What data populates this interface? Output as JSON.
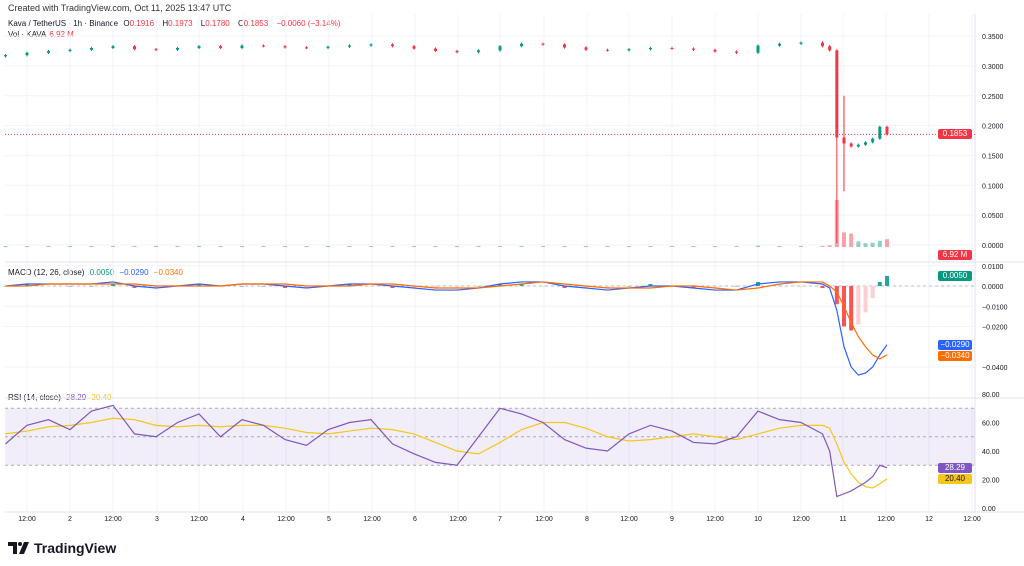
{
  "credit": "Created with TradingView.com, Oct 11, 2025 13:47 UTC",
  "brand": "TradingView",
  "legend": {
    "symbol": "Kava / TetherUS · 1h · Binance",
    "o_label": "O",
    "o": "0.1916",
    "h_label": "H",
    "h": "0.1973",
    "l_label": "L",
    "l": "0.1780",
    "c_label": "C",
    "c": "0.1853",
    "change": "−0.0060 (−3.14%)",
    "vol_label": "Vol · KAVA",
    "vol": "6.92 M",
    "macd_label": "MACD (12, 26, close)",
    "macd_hist": "0.0050",
    "macd": "−0.0290",
    "macd_signal": "−0.0340",
    "rsi_label": "RSI (14, close)",
    "rsi": "28.29",
    "rsi_ma": "20.40"
  },
  "colors": {
    "up": "#089981",
    "down": "#f23645",
    "macd": "#2962ff",
    "signal": "#ff6d00",
    "rsi": "#7e57c2",
    "rsi_ma": "#f7c51e"
  },
  "tags": {
    "price": "0.1853",
    "vol": "6.92 M",
    "hist": "0.0050",
    "macd": "−0.0290",
    "signal": "−0.0340",
    "rsi": "28.29",
    "rsi_ma": "20.40"
  },
  "chart_data": [
    {
      "type": "candlestick",
      "yaxis_ticks": [
        "0.3500",
        "0.3000",
        "0.2500",
        "0.2000",
        "0.1500",
        "0.1000",
        "0.0500",
        "0.0000"
      ],
      "x_ticks": [
        "12:00",
        "2",
        "12:00",
        "3",
        "12:00",
        "4",
        "12:00",
        "5",
        "12:00",
        "6",
        "12:00",
        "7",
        "12:00",
        "8",
        "12:00",
        "9",
        "12:00",
        "10",
        "12:00",
        "11",
        "12:00",
        "12",
        "12:00"
      ],
      "times": [
        "Oct 1 06:00",
        "Oct 1 12:00",
        "Oct 1 18:00",
        "Oct 2 00:00",
        "Oct 2 06:00",
        "Oct 2 12:00",
        "Oct 2 18:00",
        "Oct 3 00:00",
        "Oct 3 06:00",
        "Oct 3 12:00",
        "Oct 3 18:00",
        "Oct 4 00:00",
        "Oct 4 06:00",
        "Oct 4 12:00",
        "Oct 4 18:00",
        "Oct 5 00:00",
        "Oct 5 06:00",
        "Oct 5 12:00",
        "Oct 5 18:00",
        "Oct 6 00:00",
        "Oct 6 06:00",
        "Oct 6 12:00",
        "Oct 6 18:00",
        "Oct 7 00:00",
        "Oct 7 06:00",
        "Oct 7 12:00",
        "Oct 7 18:00",
        "Oct 8 00:00",
        "Oct 8 06:00",
        "Oct 8 12:00",
        "Oct 8 18:00",
        "Oct 9 00:00",
        "Oct 9 06:00",
        "Oct 9 12:00",
        "Oct 9 18:00",
        "Oct 10 00:00",
        "Oct 10 06:00",
        "Oct 10 12:00",
        "Oct 10 18:00",
        "Oct 10 20:00",
        "Oct 10 22:00",
        "Oct 11 00:00",
        "Oct 11 02:00",
        "Oct 11 04:00",
        "Oct 11 06:00",
        "Oct 11 08:00",
        "Oct 11 10:00",
        "Oct 11 12:00"
      ],
      "close": [
        0.318,
        0.322,
        0.325,
        0.327,
        0.33,
        0.333,
        0.328,
        0.327,
        0.33,
        0.333,
        0.33,
        0.334,
        0.333,
        0.331,
        0.33,
        0.332,
        0.334,
        0.336,
        0.333,
        0.329,
        0.325,
        0.323,
        0.326,
        0.333,
        0.337,
        0.336,
        0.331,
        0.327,
        0.326,
        0.328,
        0.33,
        0.329,
        0.327,
        0.324,
        0.322,
        0.334,
        0.337,
        0.339,
        0.333,
        0.326,
        0.18,
        0.17,
        0.165,
        0.168,
        0.172,
        0.178,
        0.198,
        0.1853
      ],
      "low_extremes": {
        "Oct 10 22:00": 0.003,
        "Oct 11 00:00": 0.09
      },
      "high_extremes": {
        "Oct 11 00:00": 0.25
      },
      "volume_m": [
        0.4,
        0.3,
        0.5,
        0.6,
        0.4,
        0.5,
        0.7,
        0.4,
        0.3,
        0.5,
        0.4,
        0.6,
        0.5,
        0.4,
        0.3,
        0.4,
        0.6,
        0.5,
        0.4,
        0.7,
        0.6,
        0.5,
        0.4,
        0.8,
        0.6,
        0.5,
        0.4,
        0.5,
        0.4,
        0.3,
        0.4,
        0.5,
        0.4,
        0.6,
        0.5,
        1.2,
        0.8,
        0.7,
        0.9,
        1.5,
        42,
        13,
        12,
        5,
        3.5,
        3.8,
        5.5,
        6.92
      ],
      "current_price": 0.1853
    },
    {
      "type": "line",
      "name": "MACD (12, 26, close)",
      "yaxis_ticks": [
        "0.0100",
        "0.0000",
        "−0.0100",
        "−0.0200",
        "−0.0400"
      ],
      "macd": [
        0.0,
        0.001,
        0.001,
        0.001,
        0.001,
        0.002,
        0.0,
        -0.001,
        0.0,
        0.001,
        0.0,
        0.001,
        0.001,
        0.0,
        -0.001,
        0.0,
        0.001,
        0.001,
        0.0,
        -0.001,
        -0.002,
        -0.002,
        -0.001,
        0.001,
        0.002,
        0.002,
        0.0,
        -0.001,
        -0.002,
        -0.001,
        0.0,
        0.0,
        -0.001,
        -0.002,
        -0.002,
        0.001,
        0.002,
        0.002,
        0.001,
        -0.001,
        -0.012,
        -0.03,
        -0.04,
        -0.044,
        -0.043,
        -0.04,
        -0.034,
        -0.029
      ],
      "signal": [
        0.0,
        0.0,
        0.001,
        0.001,
        0.001,
        0.001,
        0.001,
        0.0,
        0.0,
        0.0,
        0.0,
        0.001,
        0.001,
        0.001,
        0.0,
        0.0,
        0.0,
        0.001,
        0.001,
        0.0,
        -0.001,
        -0.001,
        -0.001,
        0.0,
        0.001,
        0.002,
        0.001,
        0.0,
        -0.001,
        -0.001,
        -0.001,
        0.0,
        0.0,
        -0.001,
        -0.002,
        -0.001,
        0.001,
        0.002,
        0.002,
        0.0,
        -0.003,
        -0.01,
        -0.018,
        -0.025,
        -0.03,
        -0.034,
        -0.036,
        -0.034
      ]
    },
    {
      "type": "line",
      "name": "RSI (14, close)",
      "yaxis_ticks": [
        "80.00",
        "60.00",
        "40.00",
        "20.00",
        "0.00"
      ],
      "bands": [
        70,
        50,
        30
      ],
      "rsi": [
        45,
        58,
        62,
        55,
        68,
        72,
        52,
        50,
        60,
        66,
        50,
        62,
        58,
        48,
        44,
        55,
        60,
        62,
        45,
        38,
        32,
        30,
        50,
        70,
        66,
        60,
        48,
        42,
        40,
        52,
        58,
        54,
        46,
        45,
        50,
        68,
        62,
        60,
        52,
        40,
        8,
        10,
        12,
        15,
        18,
        22,
        30,
        28.29
      ],
      "rsi_ma": [
        52,
        54,
        57,
        58,
        60,
        63,
        62,
        58,
        57,
        58,
        57,
        58,
        58,
        56,
        53,
        52,
        54,
        56,
        55,
        52,
        46,
        40,
        38,
        46,
        55,
        60,
        60,
        56,
        50,
        47,
        48,
        50,
        52,
        50,
        48,
        52,
        56,
        58,
        58,
        56,
        45,
        32,
        24,
        18,
        15,
        14,
        17,
        20.4
      ]
    }
  ]
}
